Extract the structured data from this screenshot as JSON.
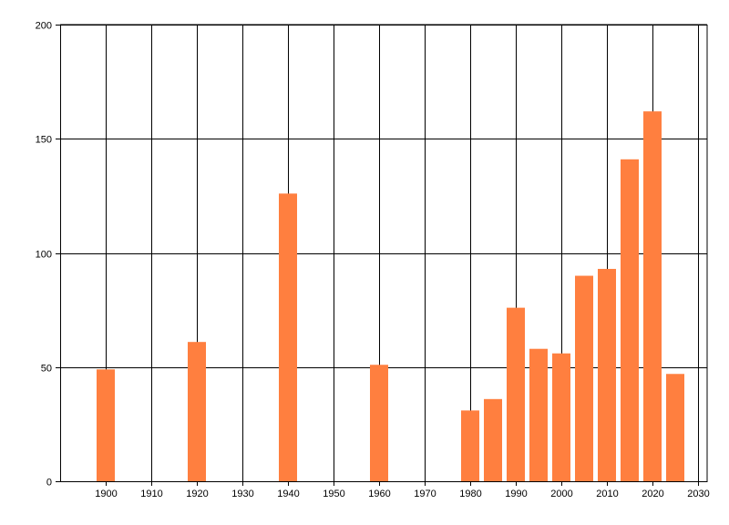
{
  "chart_data": {
    "type": "bar",
    "title": "",
    "xlabel": "",
    "ylabel": "",
    "grid": true,
    "bar_color": "#ff7f3f",
    "xlim": [
      1890,
      2032
    ],
    "ylim": [
      0,
      200
    ],
    "x_ticks": [
      1900,
      1910,
      1920,
      1930,
      1940,
      1950,
      1960,
      1970,
      1980,
      1990,
      2000,
      2010,
      2020,
      2030
    ],
    "y_ticks": [
      0,
      50,
      100,
      150,
      200
    ],
    "bar_width_years": 4,
    "series": [
      {
        "x": [
          1900,
          1920,
          1940,
          1960,
          1980,
          1985,
          1990,
          1995,
          2000,
          2005,
          2010,
          2015,
          2020,
          2025
        ],
        "values": [
          49,
          61,
          126,
          51,
          31,
          36,
          76,
          58,
          56,
          90,
          93,
          141,
          162,
          47
        ]
      }
    ]
  }
}
